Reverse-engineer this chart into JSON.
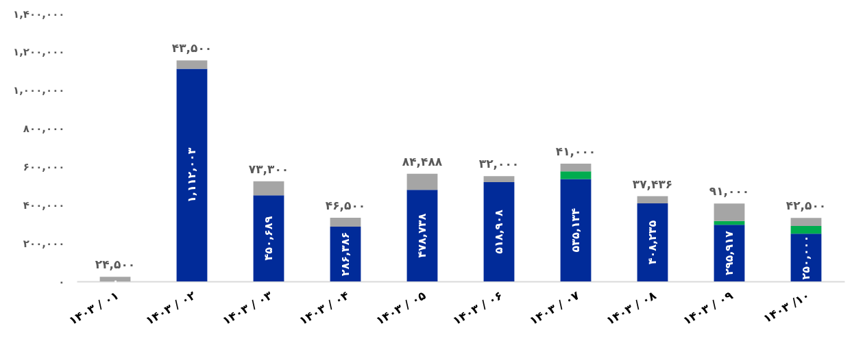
{
  "chart_data": {
    "type": "bar",
    "stacked": true,
    "categories": [
      "۱۴۰۳ / ۰۱",
      "۱۴۰۳ / ۰۲",
      "۱۴۰۳ / ۰۳",
      "۱۴۰۳ / ۰۴",
      "۱۴۰۳ / ۰۵",
      "۱۴۰۳ / ۰۶",
      "۱۴۰۳ / ۰۷",
      "۱۴۰۳ / ۰۸",
      "۱۴۰۳ / ۰۹",
      "۱۴۰۳ /۱۰"
    ],
    "series": [
      {
        "color": "#012b99",
        "values": [
          0,
          1112003,
          450689,
          286386,
          478738,
          518908,
          535134,
          408235,
          295917,
          250000
        ],
        "value_labels": [
          "۰",
          "۱,۱۱۲,۰۰۳",
          "۴۵۰,۶۸۹",
          "۲۸۶,۳۸۶",
          "۴۷۸,۷۳۸",
          "۵۱۸,۹۰۸",
          "۵۳۵,۱۳۴",
          "۴۰۸,۲۳۵",
          "۲۹۵,۹۱۷",
          "۲۵۰,۰۰۰"
        ]
      },
      {
        "color": "#00ac4f",
        "values": [
          0,
          0,
          0,
          0,
          0,
          0,
          40000,
          0,
          20000,
          40000
        ]
      },
      {
        "color": "#a5a5a5",
        "values": [
          24500,
          43500,
          73300,
          46500,
          84488,
          32000,
          41000,
          37436,
          91000,
          42500
        ],
        "value_labels": [
          "۲۴,۵۰۰",
          "۴۳,۵۰۰",
          "۷۳,۳۰۰",
          "۴۶,۵۰۰",
          "۸۴,۴۸۸",
          "۳۲,۰۰۰",
          "۴۱,۰۰۰",
          "۳۷,۴۳۶",
          "۹۱,۰۰۰",
          "۴۲,۵۰۰"
        ]
      }
    ],
    "ylim": [
      0,
      1400000
    ],
    "yticks": [
      {
        "value": 0,
        "label": "۰"
      },
      {
        "value": 200000,
        "label": "۲۰۰,۰۰۰"
      },
      {
        "value": 400000,
        "label": "۴۰۰,۰۰۰"
      },
      {
        "value": 600000,
        "label": "۶۰۰,۰۰۰"
      },
      {
        "value": 800000,
        "label": "۸۰۰,۰۰۰"
      },
      {
        "value": 1000000,
        "label": "۱,۰۰۰,۰۰۰"
      },
      {
        "value": 1200000,
        "label": "۱,۲۰۰,۰۰۰"
      },
      {
        "value": 1400000,
        "label": "۱,۴۰۰,۰۰۰"
      }
    ],
    "grid": false,
    "legend": false
  }
}
